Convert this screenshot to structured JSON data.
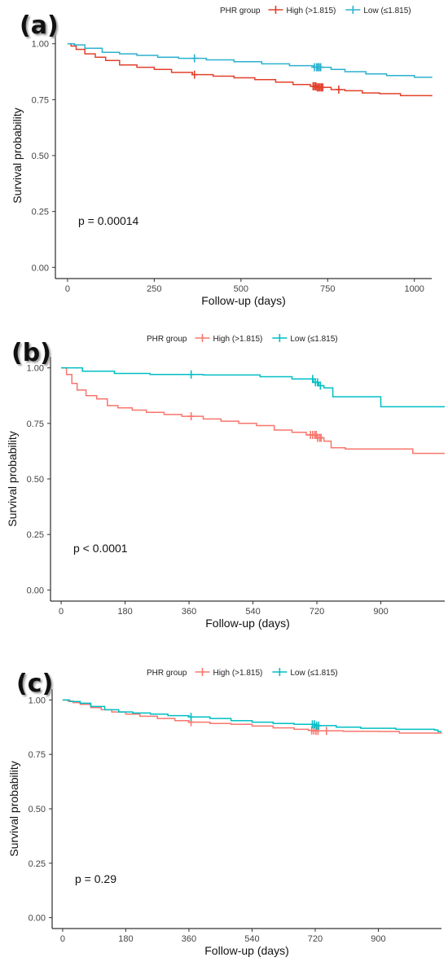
{
  "chart_data": [
    {
      "panel_label": "(a)",
      "type": "line",
      "step": true,
      "legend_title": "PHR group",
      "legend_position": "top",
      "xlabel": "Follow-up (days)",
      "ylabel": "Survival probability",
      "xlim": [
        -35,
        1050
      ],
      "ylim": [
        -0.05,
        1.05
      ],
      "x_ticks": [
        0,
        250,
        500,
        750,
        1000
      ],
      "y_ticks": [
        0.0,
        0.25,
        0.5,
        0.75,
        1.0
      ],
      "y_tick_labels": [
        "0.00",
        "0.25",
        "0.50",
        "0.75",
        "1.00"
      ],
      "grid": false,
      "annotation": "p = 0.00014",
      "series": [
        {
          "name": "High (>1.815)",
          "color": "#E2402B",
          "points": [
            [
              0,
              1.0
            ],
            [
              10,
              0.99
            ],
            [
              25,
              0.975
            ],
            [
              50,
              0.955
            ],
            [
              80,
              0.94
            ],
            [
              110,
              0.925
            ],
            [
              150,
              0.905
            ],
            [
              200,
              0.895
            ],
            [
              250,
              0.885
            ],
            [
              300,
              0.872
            ],
            [
              360,
              0.862
            ],
            [
              420,
              0.855
            ],
            [
              480,
              0.848
            ],
            [
              540,
              0.84
            ],
            [
              600,
              0.828
            ],
            [
              650,
              0.818
            ],
            [
              700,
              0.81
            ],
            [
              720,
              0.805
            ],
            [
              760,
              0.795
            ],
            [
              800,
              0.79
            ],
            [
              850,
              0.78
            ],
            [
              900,
              0.777
            ],
            [
              960,
              0.768
            ],
            [
              1050,
              0.765
            ]
          ],
          "censor_x": [
            366,
            708,
            712,
            716,
            720,
            724,
            728,
            732,
            736,
            782
          ]
        },
        {
          "name": "Low (≤1.815)",
          "color": "#2BB1CF",
          "points": [
            [
              0,
              1.0
            ],
            [
              20,
              0.995
            ],
            [
              50,
              0.98
            ],
            [
              100,
              0.962
            ],
            [
              150,
              0.955
            ],
            [
              200,
              0.948
            ],
            [
              260,
              0.94
            ],
            [
              320,
              0.935
            ],
            [
              400,
              0.928
            ],
            [
              480,
              0.92
            ],
            [
              560,
              0.91
            ],
            [
              640,
              0.902
            ],
            [
              710,
              0.895
            ],
            [
              760,
              0.885
            ],
            [
              800,
              0.875
            ],
            [
              860,
              0.865
            ],
            [
              920,
              0.858
            ],
            [
              1000,
              0.85
            ],
            [
              1050,
              0.848
            ]
          ],
          "censor_x": [
            366,
            712,
            718,
            722,
            726,
            730
          ]
        }
      ]
    },
    {
      "panel_label": "(b)",
      "type": "line",
      "step": true,
      "legend_title": "PHR group",
      "legend_position": "top",
      "xlabel": "Follow-up (days)",
      "ylabel": "Survival probability",
      "xlim": [
        -30,
        1080
      ],
      "ylim": [
        -0.05,
        1.05
      ],
      "x_ticks": [
        0,
        180,
        360,
        540,
        720,
        900
      ],
      "y_ticks": [
        0.0,
        0.25,
        0.5,
        0.75,
        1.0
      ],
      "y_tick_labels": [
        "0.00",
        "0.25",
        "0.50",
        "0.75",
        "1.00"
      ],
      "grid": false,
      "annotation": "p < 0.0001",
      "series": [
        {
          "name": "High (>1.815)",
          "color": "#F8766D",
          "points": [
            [
              0,
              1.0
            ],
            [
              15,
              0.97
            ],
            [
              30,
              0.93
            ],
            [
              45,
              0.9
            ],
            [
              70,
              0.875
            ],
            [
              100,
              0.86
            ],
            [
              130,
              0.83
            ],
            [
              160,
              0.82
            ],
            [
              200,
              0.81
            ],
            [
              240,
              0.8
            ],
            [
              290,
              0.79
            ],
            [
              340,
              0.782
            ],
            [
              400,
              0.77
            ],
            [
              450,
              0.76
            ],
            [
              500,
              0.75
            ],
            [
              550,
              0.74
            ],
            [
              600,
              0.72
            ],
            [
              650,
              0.71
            ],
            [
              690,
              0.698
            ],
            [
              720,
              0.685
            ],
            [
              740,
              0.67
            ],
            [
              760,
              0.64
            ],
            [
              800,
              0.635
            ],
            [
              900,
              0.635
            ],
            [
              990,
              0.615
            ],
            [
              1080,
              0.615
            ]
          ],
          "censor_x": [
            366,
            702,
            708,
            714,
            718,
            722,
            728,
            732
          ]
        },
        {
          "name": "Low (≤1.815)",
          "color": "#00BFC4",
          "points": [
            [
              0,
              1.0
            ],
            [
              60,
              0.985
            ],
            [
              150,
              0.975
            ],
            [
              250,
              0.97
            ],
            [
              400,
              0.968
            ],
            [
              560,
              0.96
            ],
            [
              650,
              0.95
            ],
            [
              710,
              0.935
            ],
            [
              725,
              0.92
            ],
            [
              740,
              0.91
            ],
            [
              765,
              0.87
            ],
            [
              850,
              0.87
            ],
            [
              900,
              0.825
            ],
            [
              1080,
              0.825
            ]
          ],
          "censor_x": [
            366,
            708,
            716,
            722,
            730
          ]
        }
      ]
    },
    {
      "panel_label": "(c)",
      "type": "line",
      "step": true,
      "legend_title": "PHR group",
      "legend_position": "top",
      "xlabel": "Follow-up (days)",
      "ylabel": "Survival probability",
      "xlim": [
        -30,
        1080
      ],
      "ylim": [
        -0.05,
        1.05
      ],
      "x_ticks": [
        0,
        180,
        360,
        540,
        720,
        900
      ],
      "y_ticks": [
        0.0,
        0.25,
        0.5,
        0.75,
        1.0
      ],
      "y_tick_labels": [
        "0.00",
        "0.25",
        "0.50",
        "0.75",
        "1.00"
      ],
      "grid": false,
      "annotation": "p = 0.29",
      "series": [
        {
          "name": "High (>1.815)",
          "color": "#F8766D",
          "points": [
            [
              0,
              1.0
            ],
            [
              15,
              0.995
            ],
            [
              30,
              0.988
            ],
            [
              50,
              0.98
            ],
            [
              80,
              0.965
            ],
            [
              110,
              0.955
            ],
            [
              140,
              0.945
            ],
            [
              180,
              0.935
            ],
            [
              220,
              0.925
            ],
            [
              270,
              0.915
            ],
            [
              320,
              0.905
            ],
            [
              360,
              0.898
            ],
            [
              420,
              0.892
            ],
            [
              480,
              0.888
            ],
            [
              540,
              0.88
            ],
            [
              600,
              0.872
            ],
            [
              660,
              0.865
            ],
            [
              700,
              0.86
            ],
            [
              720,
              0.858
            ],
            [
              800,
              0.856
            ],
            [
              900,
              0.855
            ],
            [
              960,
              0.848
            ],
            [
              1080,
              0.845
            ]
          ],
          "censor_x": [
            366,
            710,
            716,
            722,
            728,
            752
          ]
        },
        {
          "name": "Low (≤1.815)",
          "color": "#00BFC4",
          "points": [
            [
              0,
              1.0
            ],
            [
              20,
              0.993
            ],
            [
              50,
              0.985
            ],
            [
              80,
              0.97
            ],
            [
              120,
              0.955
            ],
            [
              160,
              0.945
            ],
            [
              200,
              0.94
            ],
            [
              250,
              0.935
            ],
            [
              300,
              0.928
            ],
            [
              360,
              0.922
            ],
            [
              420,
              0.915
            ],
            [
              480,
              0.905
            ],
            [
              540,
              0.898
            ],
            [
              600,
              0.892
            ],
            [
              660,
              0.888
            ],
            [
              720,
              0.882
            ],
            [
              780,
              0.875
            ],
            [
              850,
              0.87
            ],
            [
              950,
              0.865
            ],
            [
              1060,
              0.862
            ],
            [
              1070,
              0.855
            ],
            [
              1080,
              0.855
            ]
          ],
          "censor_x": [
            366,
            712,
            718,
            724,
            730
          ]
        }
      ]
    }
  ]
}
